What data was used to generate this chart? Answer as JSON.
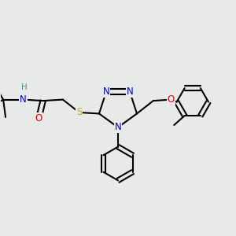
{
  "bg_color": "#e8eaea",
  "bond_color": "#000000",
  "bond_width": 1.5,
  "dbo": 0.012,
  "figsize": [
    3.0,
    3.0
  ],
  "dpi": 100,
  "colors": {
    "N": "#0000cc",
    "O": "#dd0000",
    "S": "#ccaa00",
    "C": "#000000",
    "H": "#4a9090"
  },
  "xlim": [
    0.0,
    1.0
  ],
  "ylim": [
    0.05,
    0.95
  ]
}
